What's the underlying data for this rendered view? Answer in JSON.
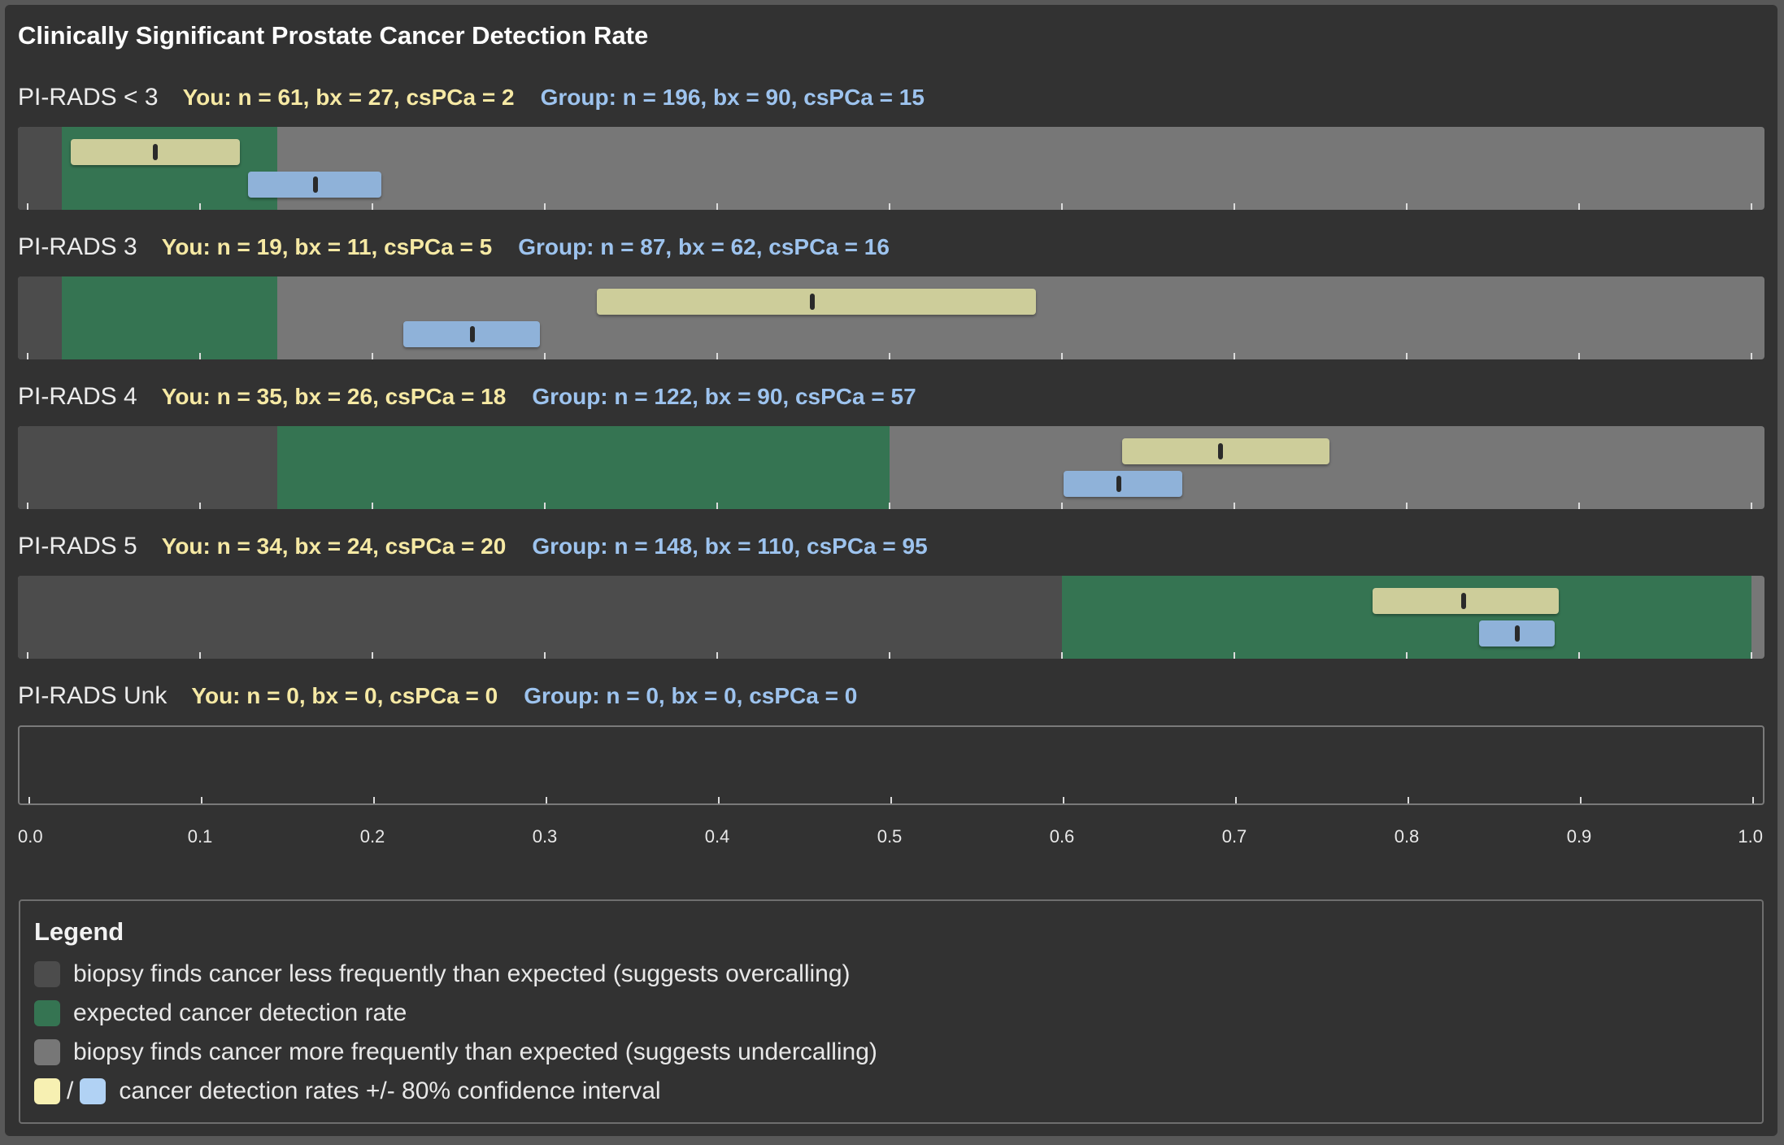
{
  "title": "Clinically Significant Prostate Cancer Detection Rate",
  "chart_data": {
    "type": "bar",
    "title": "Clinically Significant Prostate Cancer Detection Rate",
    "xlim": [
      0,
      1
    ],
    "xticks": [
      "0.0",
      "0.1",
      "0.2",
      "0.3",
      "0.4",
      "0.5",
      "0.6",
      "0.7",
      "0.8",
      "0.9",
      "1.0"
    ],
    "rows": [
      {
        "label": "PI-RADS < 3",
        "you_text": "You: n = 61, bx = 27, csPCa = 2",
        "group_text": "Group: n = 196, bx = 90, csPCa = 15",
        "expected_range": [
          0.02,
          0.145
        ],
        "you": {
          "low": 0.025,
          "rate": 0.074,
          "high": 0.123
        },
        "group": {
          "low": 0.128,
          "rate": 0.167,
          "high": 0.205
        }
      },
      {
        "label": "PI-RADS 3",
        "you_text": "You: n = 19, bx = 11, csPCa = 5",
        "group_text": "Group: n = 87, bx = 62, csPCa = 16",
        "expected_range": [
          0.02,
          0.145
        ],
        "you": {
          "low": 0.33,
          "rate": 0.455,
          "high": 0.585
        },
        "group": {
          "low": 0.218,
          "rate": 0.258,
          "high": 0.297
        }
      },
      {
        "label": "PI-RADS 4",
        "you_text": "You: n = 35, bx = 26, csPCa = 18",
        "group_text": "Group: n = 122, bx = 90, csPCa = 57",
        "expected_range": [
          0.145,
          0.5
        ],
        "you": {
          "low": 0.635,
          "rate": 0.692,
          "high": 0.755
        },
        "group": {
          "low": 0.601,
          "rate": 0.633,
          "high": 0.67
        }
      },
      {
        "label": "PI-RADS 5",
        "you_text": "You: n = 34, bx = 24, csPCa = 20",
        "group_text": "Group: n = 148, bx = 110, csPCa = 95",
        "expected_range": [
          0.6,
          1.0
        ],
        "you": {
          "low": 0.78,
          "rate": 0.833,
          "high": 0.888
        },
        "group": {
          "low": 0.842,
          "rate": 0.864,
          "high": 0.886
        }
      },
      {
        "label": "PI-RADS Unk",
        "you_text": "You: n = 0, bx = 0, csPCa = 0",
        "group_text": "Group: n = 0, bx = 0, csPCa = 0",
        "expected_range": null,
        "you": null,
        "group": null
      }
    ]
  },
  "legend": {
    "title": "Legend",
    "items": [
      {
        "text": "biopsy finds cancer less frequently than expected (suggests overcalling)",
        "color": "#4c4c4c"
      },
      {
        "text": "expected cancer detection rate",
        "color": "#357452"
      },
      {
        "text": "biopsy finds cancer more frequently than expected (suggests undercalling)",
        "color": "#777777"
      },
      {
        "text": "cancer detection rates +/- 80% confidence interval",
        "colors": [
          "#f7f0b2",
          "#b1d2f4"
        ],
        "slash": "/"
      }
    ]
  }
}
